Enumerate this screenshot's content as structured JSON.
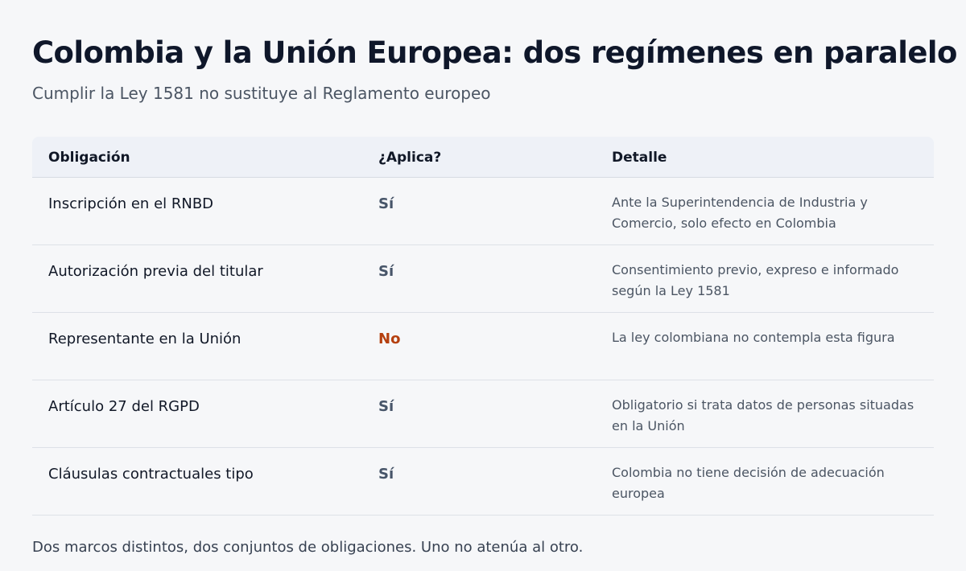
{
  "header": {
    "title": "Colombia y la Unión Europea: dos regímenes en paralelo",
    "subtitle": "Cumplir la Ley 1581 no sustituye al Reglamento europeo"
  },
  "table": {
    "columns": [
      "Obligación",
      "¿Aplica?",
      "Detalle"
    ],
    "rows": [
      {
        "obligation": "Inscripción en el RNBD",
        "applies": "Sí",
        "detail": "Ante la Superintendencia de Industria y Comercio, solo efecto en Colombia"
      },
      {
        "obligation": "Autorización previa del titular",
        "applies": "Sí",
        "detail": "Consentimiento previo, expreso e informado según la Ley 1581"
      },
      {
        "obligation": "Representante en la Unión",
        "applies": "No",
        "detail": "La ley colombiana no contempla esta figura"
      },
      {
        "obligation": "Artículo 27 del RGPD",
        "applies": "Sí",
        "detail": "Obligatorio si trata datos de personas situadas en la Unión"
      },
      {
        "obligation": "Cláusulas contractuales tipo",
        "applies": "Sí",
        "detail": "Colombia no tiene decisión de adecuación europea"
      }
    ]
  },
  "colors": {
    "yes": "#475569",
    "no": "#b5400f"
  },
  "footer": {
    "note": "Dos marcos distintos, dos conjuntos de obligaciones. Uno no atenúa al otro."
  }
}
